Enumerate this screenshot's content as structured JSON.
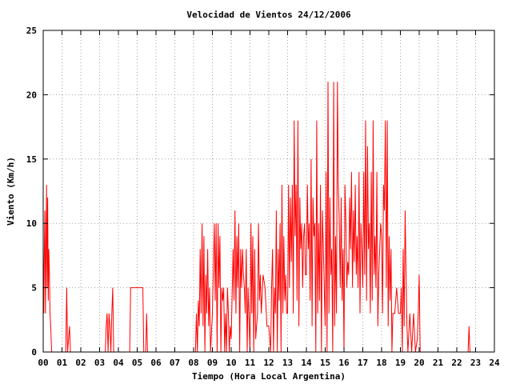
{
  "chart_data": {
    "type": "line",
    "title": "Velocidad de Vientos 24/12/2006",
    "xlabel": "Tiempo (Hora Local Argentina)",
    "ylabel": "Viento (Km/h)",
    "xlim": [
      0,
      24
    ],
    "ylim": [
      0,
      25
    ],
    "grid": true,
    "x_tick_labels": [
      "00",
      "01",
      "02",
      "03",
      "04",
      "05",
      "06",
      "07",
      "08",
      "09",
      "10",
      "11",
      "12",
      "13",
      "14",
      "15",
      "16",
      "17",
      "18",
      "19",
      "20",
      "21",
      "22",
      "23",
      "24"
    ],
    "y_ticks": [
      0,
      5,
      10,
      15,
      20,
      25
    ],
    "series": [
      {
        "color": "#ff0000",
        "x": [
          0.0,
          0.03,
          0.06,
          0.09,
          0.12,
          0.15,
          0.18,
          0.21,
          0.24,
          0.27,
          0.3,
          0.33,
          0.36,
          0.4,
          0.45,
          0.5,
          0.55,
          1.2,
          1.25,
          1.3,
          1.4,
          1.45,
          1.5,
          3.3,
          3.35,
          3.4,
          3.45,
          3.5,
          3.55,
          3.6,
          3.65,
          3.7,
          3.75,
          3.8,
          4.6,
          4.65,
          4.7,
          5.2,
          5.3,
          5.35,
          5.45,
          5.5,
          5.55,
          8.1,
          8.15,
          8.2,
          8.25,
          8.3,
          8.35,
          8.4,
          8.45,
          8.5,
          8.55,
          8.6,
          8.65,
          8.7,
          8.75,
          8.8,
          8.85,
          8.9,
          9.0,
          9.1,
          9.15,
          9.2,
          9.25,
          9.3,
          9.35,
          9.4,
          9.45,
          9.5,
          9.55,
          9.6,
          9.65,
          9.7,
          9.75,
          9.8,
          9.85,
          9.9,
          9.95,
          10.0,
          10.1,
          10.15,
          10.2,
          10.25,
          10.3,
          10.35,
          10.4,
          10.45,
          10.5,
          10.55,
          10.6,
          10.65,
          10.7,
          10.75,
          10.8,
          10.85,
          10.9,
          11.0,
          11.05,
          11.1,
          11.15,
          11.2,
          11.25,
          11.3,
          11.35,
          11.4,
          11.45,
          11.5,
          11.55,
          11.6,
          11.7,
          11.8,
          11.9,
          12.0,
          12.1,
          12.15,
          12.2,
          12.25,
          12.3,
          12.35,
          12.4,
          12.45,
          12.5,
          12.55,
          12.6,
          12.65,
          12.7,
          12.75,
          12.8,
          12.85,
          12.9,
          12.95,
          13.0,
          13.05,
          13.1,
          13.15,
          13.2,
          13.25,
          13.3,
          13.35,
          13.4,
          13.45,
          13.5,
          13.55,
          13.6,
          13.65,
          13.7,
          13.75,
          13.8,
          13.85,
          13.9,
          13.95,
          14.0,
          14.05,
          14.1,
          14.15,
          14.2,
          14.25,
          14.3,
          14.35,
          14.4,
          14.45,
          14.5,
          14.55,
          14.6,
          14.65,
          14.7,
          14.75,
          14.8,
          14.85,
          14.9,
          14.95,
          15.0,
          15.05,
          15.1,
          15.15,
          15.2,
          15.25,
          15.3,
          15.35,
          15.4,
          15.45,
          15.5,
          15.55,
          15.6,
          15.65,
          15.7,
          15.75,
          15.8,
          15.85,
          15.9,
          15.95,
          16.0,
          16.05,
          16.1,
          16.15,
          16.2,
          16.25,
          16.3,
          16.35,
          16.4,
          16.45,
          16.5,
          16.55,
          16.6,
          16.65,
          16.7,
          16.75,
          16.8,
          16.85,
          16.9,
          16.95,
          17.0,
          17.05,
          17.1,
          17.15,
          17.2,
          17.25,
          17.3,
          17.35,
          17.4,
          17.45,
          17.5,
          17.55,
          17.6,
          17.65,
          17.7,
          17.75,
          17.8,
          17.85,
          17.9,
          17.95,
          18.0,
          18.05,
          18.1,
          18.15,
          18.2,
          18.25,
          18.3,
          18.35,
          18.4,
          18.45,
          18.5,
          18.55,
          18.6,
          18.7,
          18.8,
          18.9,
          19.0,
          19.05,
          19.1,
          19.15,
          19.2,
          19.25,
          19.3,
          19.35,
          19.4,
          19.5,
          19.6,
          19.7,
          19.8,
          19.9,
          19.95,
          20.0,
          20.05,
          22.6,
          22.65,
          22.7
        ],
        "y": [
          8,
          3,
          8,
          11,
          3,
          8,
          13,
          5,
          12,
          4,
          8,
          6,
          3,
          2,
          0,
          0,
          0,
          0,
          5,
          0,
          2,
          0,
          0,
          0,
          2,
          3,
          0,
          3,
          2,
          0,
          3,
          5,
          0,
          0,
          0,
          5,
          5,
          5,
          5,
          0,
          0,
          3,
          0,
          0,
          3,
          0,
          4,
          2,
          8,
          3,
          10,
          2,
          9,
          0,
          6,
          3,
          8,
          2,
          5,
          0,
          3,
          10,
          4,
          10,
          0,
          10,
          5,
          9,
          0,
          5,
          4,
          5,
          0,
          3,
          0,
          5,
          3,
          0,
          2,
          1,
          8,
          4,
          11,
          3,
          9,
          5,
          10,
          0,
          8,
          5,
          8,
          6,
          5,
          3,
          8,
          0,
          5,
          0,
          10,
          3,
          9,
          0,
          8,
          1,
          2,
          3,
          10,
          4,
          6,
          3,
          6,
          5,
          2,
          2,
          0,
          5,
          8,
          0,
          5,
          3,
          11,
          0,
          8,
          4,
          10,
          0,
          13,
          3,
          9,
          4,
          6,
          3,
          3,
          13,
          5,
          12,
          7,
          13,
          3,
          18,
          9,
          13,
          4,
          18,
          2,
          12,
          8,
          10,
          5,
          9,
          10,
          6,
          6,
          13,
          8,
          10,
          4,
          15,
          2,
          12,
          9,
          10,
          0,
          18,
          3,
          10,
          4,
          13,
          0,
          11,
          8,
          5,
          2,
          14,
          0,
          21,
          3,
          12,
          6,
          8,
          0,
          21,
          2,
          9,
          3,
          21,
          13,
          10,
          5,
          12,
          4,
          8,
          0,
          13,
          10,
          5,
          7,
          6,
          12,
          8,
          14,
          5,
          11,
          7,
          13,
          6,
          9,
          5,
          14,
          3,
          10,
          8,
          5,
          14,
          6,
          18,
          4,
          16,
          8,
          10,
          3,
          14,
          4,
          18,
          6,
          9,
          5,
          14,
          2,
          6,
          8,
          10,
          9,
          3,
          13,
          11,
          18,
          5,
          18,
          2,
          9,
          4,
          8,
          0,
          3,
          3,
          5,
          3,
          3,
          5,
          0,
          8,
          2,
          11,
          6,
          2,
          0,
          3,
          0,
          3,
          0,
          1,
          3,
          6,
          0,
          0,
          2,
          0
        ]
      }
    ]
  }
}
